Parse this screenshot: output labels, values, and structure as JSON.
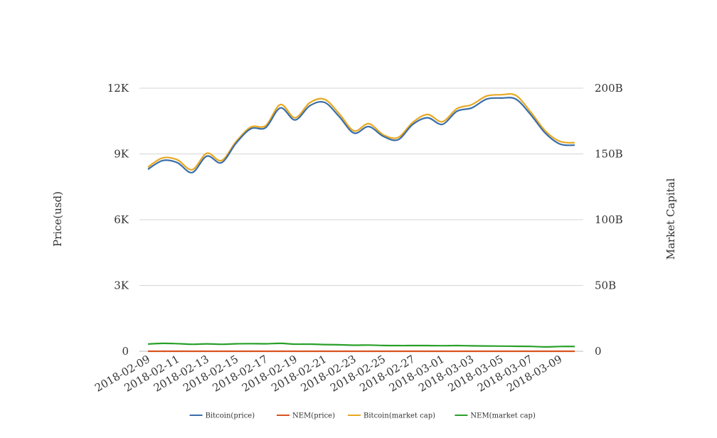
{
  "chart_data": {
    "type": "line",
    "title": "",
    "ylabel": "Price(usd)",
    "y2label": "Market Capital",
    "ylim": [
      0,
      12000
    ],
    "y2lim": [
      0,
      200000000000
    ],
    "yticks": [
      "0",
      "3K",
      "6K",
      "9K",
      "12K"
    ],
    "y2ticks": [
      "0",
      "50B",
      "100B",
      "150B",
      "200B"
    ],
    "grid": true,
    "legend_position": "bottom",
    "x": [
      "2018-02-09",
      "2018-02-10",
      "2018-02-11",
      "2018-02-12",
      "2018-02-13",
      "2018-02-14",
      "2018-02-15",
      "2018-02-16",
      "2018-02-17",
      "2018-02-18",
      "2018-02-19",
      "2018-02-20",
      "2018-02-21",
      "2018-02-22",
      "2018-02-23",
      "2018-02-24",
      "2018-02-25",
      "2018-02-26",
      "2018-02-27",
      "2018-02-28",
      "2018-03-01",
      "2018-03-02",
      "2018-03-03",
      "2018-03-04",
      "2018-03-05",
      "2018-03-06",
      "2018-03-07",
      "2018-03-08",
      "2018-03-09",
      "2018-03-10"
    ],
    "xticks": [
      "2018-02-09",
      "2018-02-11",
      "2018-02-13",
      "2018-02-15",
      "2018-02-17",
      "2018-02-19",
      "2018-02-21",
      "2018-02-23",
      "2018-02-25",
      "2018-02-27",
      "2018-03-01",
      "2018-03-03",
      "2018-03-05",
      "2018-03-07",
      "2018-03-09"
    ],
    "series": [
      {
        "name": "Bitcoin(price)",
        "axis": "left",
        "color": "#3a6ea8",
        "values": [
          8300,
          8700,
          8600,
          8150,
          8900,
          8600,
          9500,
          10150,
          10200,
          11100,
          10550,
          11200,
          11350,
          10700,
          9950,
          10250,
          9800,
          9650,
          10350,
          10650,
          10350,
          10950,
          11100,
          11500,
          11550,
          11500,
          10800,
          9950,
          9450,
          9400
        ]
      },
      {
        "name": "NEM(price)",
        "axis": "left",
        "color": "#d9531e",
        "values": [
          0.5,
          0.55,
          0.53,
          0.5,
          0.52,
          0.5,
          0.52,
          0.53,
          0.52,
          0.55,
          0.5,
          0.5,
          0.47,
          0.45,
          0.43,
          0.44,
          0.41,
          0.4,
          0.4,
          0.4,
          0.39,
          0.4,
          0.39,
          0.38,
          0.37,
          0.37,
          0.36,
          0.33,
          0.35,
          0.35
        ]
      },
      {
        "name": "Bitcoin(market cap)",
        "axis": "right",
        "color": "#e8a820",
        "values": [
          140000000000,
          147000000000,
          145500000000,
          138000000000,
          150500000000,
          145000000000,
          159500000000,
          170500000000,
          171500000000,
          187500000000,
          177500000000,
          189000000000,
          191500000000,
          180500000000,
          167500000000,
          173000000000,
          164500000000,
          162500000000,
          174000000000,
          180000000000,
          174500000000,
          184500000000,
          187500000000,
          194000000000,
          195000000000,
          194500000000,
          182000000000,
          167500000000,
          159500000000,
          158500000000
        ]
      },
      {
        "name": "NEM(market cap)",
        "axis": "right",
        "color": "#2aa02a",
        "values": [
          5500000000,
          6000000000,
          5800000000,
          5300000000,
          5600000000,
          5300000000,
          5700000000,
          5800000000,
          5700000000,
          6000000000,
          5400000000,
          5400000000,
          5100000000,
          4900000000,
          4600000000,
          4700000000,
          4400000000,
          4300000000,
          4300000000,
          4300000000,
          4200000000,
          4300000000,
          4100000000,
          4000000000,
          3900000000,
          3800000000,
          3700000000,
          3300000000,
          3600000000,
          3600000000
        ]
      }
    ]
  }
}
